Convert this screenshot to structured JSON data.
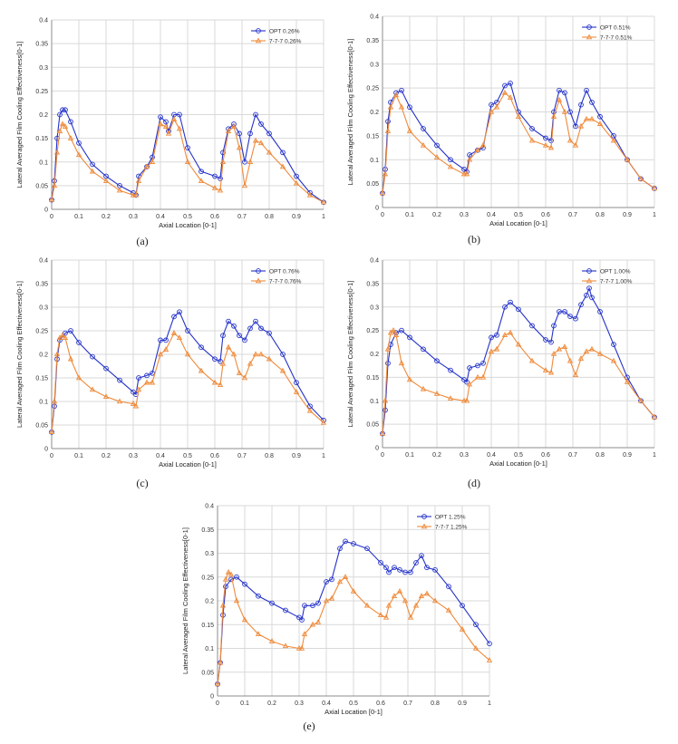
{
  "chart_data": [
    {
      "type": "line",
      "caption": "(a)",
      "xlabel": "Axial Location [0-1]",
      "ylabel": "Lateral Averaged Film Cooling Effectiveness[0-1]",
      "xlim": [
        0,
        1
      ],
      "ylim": [
        0,
        0.4
      ],
      "xticks": [
        "0",
        "0.1",
        "0.2",
        "0.3",
        "0.4",
        "0.5",
        "0.6",
        "0.7",
        "0.8",
        "0.9",
        "1"
      ],
      "yticks": [
        "0",
        "0.05",
        "0.1",
        "0.15",
        "0.2",
        "0.25",
        "0.3",
        "0.35",
        "0.4"
      ],
      "grid": true,
      "legend": "top-right",
      "series": [
        {
          "name": "OPT 0.26%",
          "color": "#2432c8",
          "marker": "circle",
          "x": [
            0,
            0.01,
            0.02,
            0.03,
            0.04,
            0.05,
            0.07,
            0.1,
            0.15,
            0.2,
            0.25,
            0.3,
            0.31,
            0.32,
            0.35,
            0.37,
            0.4,
            0.42,
            0.43,
            0.45,
            0.47,
            0.5,
            0.55,
            0.6,
            0.62,
            0.63,
            0.65,
            0.67,
            0.69,
            0.71,
            0.73,
            0.75,
            0.77,
            0.8,
            0.85,
            0.9,
            0.95,
            1.0
          ],
          "y": [
            0.02,
            0.06,
            0.15,
            0.2,
            0.21,
            0.21,
            0.185,
            0.14,
            0.095,
            0.07,
            0.05,
            0.035,
            0.03,
            0.07,
            0.09,
            0.11,
            0.195,
            0.185,
            0.165,
            0.2,
            0.2,
            0.13,
            0.08,
            0.07,
            0.065,
            0.12,
            0.17,
            0.18,
            0.16,
            0.1,
            0.16,
            0.2,
            0.18,
            0.16,
            0.12,
            0.07,
            0.035,
            0.015
          ]
        },
        {
          "name": "7-7-7 0.26%",
          "color": "#ef8a3a",
          "marker": "triangle",
          "x": [
            0,
            0.01,
            0.02,
            0.03,
            0.04,
            0.05,
            0.07,
            0.1,
            0.15,
            0.2,
            0.25,
            0.3,
            0.31,
            0.32,
            0.35,
            0.37,
            0.4,
            0.42,
            0.43,
            0.45,
            0.47,
            0.5,
            0.55,
            0.6,
            0.62,
            0.63,
            0.65,
            0.67,
            0.69,
            0.71,
            0.73,
            0.75,
            0.77,
            0.8,
            0.85,
            0.9,
            0.95,
            1.0
          ],
          "y": [
            0.02,
            0.05,
            0.12,
            0.165,
            0.18,
            0.175,
            0.15,
            0.115,
            0.08,
            0.06,
            0.04,
            0.03,
            0.03,
            0.06,
            0.09,
            0.1,
            0.18,
            0.175,
            0.16,
            0.19,
            0.17,
            0.1,
            0.06,
            0.045,
            0.04,
            0.1,
            0.165,
            0.175,
            0.13,
            0.05,
            0.1,
            0.145,
            0.14,
            0.12,
            0.09,
            0.055,
            0.03,
            0.015
          ]
        }
      ]
    },
    {
      "type": "line",
      "caption": "(b)",
      "xlabel": "Axial Location [0-1]",
      "ylabel": "Lateral Averaged Film Cooling Effectiveness[0-1]",
      "xlim": [
        0,
        1
      ],
      "ylim": [
        0,
        0.4
      ],
      "xticks": [
        "0",
        "0.1",
        "0.2",
        "0.3",
        "0.4",
        "0.5",
        "0.6",
        "0.7",
        "0.8",
        "0.9",
        "1"
      ],
      "yticks": [
        "0",
        "0.05",
        "0.1",
        "0.15",
        "0.2",
        "0.25",
        "0.3",
        "0.35",
        "0.4"
      ],
      "grid": true,
      "legend": "top-right",
      "series": [
        {
          "name": "OPT 0.51%",
          "color": "#2432c8",
          "marker": "circle",
          "x": [
            0,
            0.01,
            0.02,
            0.03,
            0.05,
            0.07,
            0.1,
            0.15,
            0.2,
            0.25,
            0.3,
            0.31,
            0.32,
            0.35,
            0.37,
            0.4,
            0.42,
            0.45,
            0.47,
            0.5,
            0.55,
            0.6,
            0.62,
            0.63,
            0.65,
            0.67,
            0.69,
            0.71,
            0.73,
            0.75,
            0.77,
            0.8,
            0.85,
            0.9,
            0.95,
            1.0
          ],
          "y": [
            0.03,
            0.08,
            0.18,
            0.22,
            0.24,
            0.245,
            0.21,
            0.165,
            0.13,
            0.1,
            0.08,
            0.075,
            0.11,
            0.12,
            0.125,
            0.215,
            0.22,
            0.255,
            0.26,
            0.2,
            0.165,
            0.145,
            0.14,
            0.2,
            0.245,
            0.24,
            0.2,
            0.17,
            0.215,
            0.245,
            0.22,
            0.19,
            0.15,
            0.1,
            0.06,
            0.04
          ]
        },
        {
          "name": "7-7-7 0.51%",
          "color": "#ef8a3a",
          "marker": "triangle",
          "x": [
            0,
            0.01,
            0.02,
            0.03,
            0.05,
            0.07,
            0.1,
            0.15,
            0.2,
            0.25,
            0.3,
            0.31,
            0.32,
            0.35,
            0.37,
            0.4,
            0.42,
            0.45,
            0.47,
            0.5,
            0.55,
            0.6,
            0.62,
            0.63,
            0.65,
            0.67,
            0.69,
            0.71,
            0.73,
            0.75,
            0.77,
            0.8,
            0.85,
            0.9,
            0.95,
            1.0
          ],
          "y": [
            0.03,
            0.07,
            0.16,
            0.21,
            0.235,
            0.21,
            0.16,
            0.13,
            0.105,
            0.085,
            0.07,
            0.07,
            0.1,
            0.12,
            0.13,
            0.2,
            0.21,
            0.24,
            0.23,
            0.19,
            0.14,
            0.13,
            0.125,
            0.19,
            0.225,
            0.2,
            0.14,
            0.13,
            0.17,
            0.185,
            0.185,
            0.175,
            0.14,
            0.1,
            0.06,
            0.04
          ]
        }
      ]
    },
    {
      "type": "line",
      "caption": "(c)",
      "xlabel": "Axial Location [0-1]",
      "ylabel": "Lateral Averaged Film Cooling Effectiveness[0-1]",
      "xlim": [
        0,
        1
      ],
      "ylim": [
        0,
        0.4
      ],
      "xticks": [
        "0",
        "0.1",
        "0.2",
        "0.3",
        "0.4",
        "0.5",
        "0.6",
        "0.7",
        "0.8",
        "0.9",
        "1"
      ],
      "yticks": [
        "0",
        "0.05",
        "0.1",
        "0.15",
        "0.2",
        "0.25",
        "0.3",
        "0.35",
        "0.4"
      ],
      "grid": true,
      "legend": "top-right",
      "series": [
        {
          "name": "OPT 0.76%",
          "color": "#2432c8",
          "marker": "circle",
          "x": [
            0,
            0.01,
            0.02,
            0.03,
            0.05,
            0.07,
            0.1,
            0.15,
            0.2,
            0.25,
            0.3,
            0.31,
            0.32,
            0.35,
            0.37,
            0.4,
            0.42,
            0.45,
            0.47,
            0.5,
            0.55,
            0.6,
            0.62,
            0.63,
            0.65,
            0.67,
            0.69,
            0.71,
            0.73,
            0.75,
            0.77,
            0.8,
            0.85,
            0.9,
            0.95,
            1.0
          ],
          "y": [
            0.035,
            0.09,
            0.19,
            0.23,
            0.245,
            0.25,
            0.225,
            0.195,
            0.17,
            0.145,
            0.12,
            0.115,
            0.15,
            0.155,
            0.16,
            0.23,
            0.23,
            0.28,
            0.29,
            0.25,
            0.215,
            0.19,
            0.185,
            0.24,
            0.27,
            0.26,
            0.24,
            0.23,
            0.255,
            0.27,
            0.255,
            0.245,
            0.2,
            0.14,
            0.09,
            0.06
          ]
        },
        {
          "name": "7-7-7 0.76%",
          "color": "#ef8a3a",
          "marker": "triangle",
          "x": [
            0,
            0.01,
            0.02,
            0.03,
            0.04,
            0.05,
            0.07,
            0.1,
            0.15,
            0.2,
            0.25,
            0.3,
            0.31,
            0.32,
            0.35,
            0.37,
            0.4,
            0.42,
            0.45,
            0.47,
            0.5,
            0.55,
            0.6,
            0.62,
            0.63,
            0.65,
            0.67,
            0.69,
            0.71,
            0.73,
            0.75,
            0.77,
            0.8,
            0.85,
            0.9,
            0.95,
            1.0
          ],
          "y": [
            0.035,
            0.1,
            0.2,
            0.235,
            0.24,
            0.235,
            0.19,
            0.15,
            0.125,
            0.11,
            0.1,
            0.095,
            0.09,
            0.125,
            0.14,
            0.14,
            0.2,
            0.21,
            0.245,
            0.235,
            0.2,
            0.165,
            0.14,
            0.135,
            0.18,
            0.215,
            0.2,
            0.16,
            0.15,
            0.18,
            0.2,
            0.2,
            0.19,
            0.165,
            0.12,
            0.08,
            0.055
          ]
        }
      ]
    },
    {
      "type": "line",
      "caption": "(d)",
      "xlabel": "Axial Location [0-1]",
      "ylabel": "Lateral Averaged Film Cooling Effectiveness[0-1]",
      "xlim": [
        0,
        1
      ],
      "ylim": [
        0,
        0.4
      ],
      "xticks": [
        "0",
        "0.1",
        "0.2",
        "0.3",
        "0.4",
        "0.5",
        "0.6",
        "0.7",
        "0.8",
        "0.9",
        "1"
      ],
      "yticks": [
        "0",
        "0.05",
        "0.1",
        "0.15",
        "0.2",
        "0.25",
        "0.3",
        "0.35",
        "0.4"
      ],
      "grid": true,
      "legend": "top-right",
      "series": [
        {
          "name": "OPT 1.00%",
          "color": "#2432c8",
          "marker": "circle",
          "x": [
            0,
            0.01,
            0.02,
            0.03,
            0.05,
            0.07,
            0.1,
            0.15,
            0.2,
            0.25,
            0.3,
            0.31,
            0.32,
            0.35,
            0.37,
            0.4,
            0.42,
            0.45,
            0.47,
            0.5,
            0.55,
            0.6,
            0.62,
            0.63,
            0.65,
            0.67,
            0.69,
            0.71,
            0.73,
            0.75,
            0.76,
            0.77,
            0.8,
            0.85,
            0.9,
            0.95,
            1.0
          ],
          "y": [
            0.03,
            0.08,
            0.18,
            0.22,
            0.245,
            0.25,
            0.235,
            0.21,
            0.185,
            0.165,
            0.145,
            0.14,
            0.17,
            0.175,
            0.18,
            0.235,
            0.24,
            0.3,
            0.31,
            0.295,
            0.26,
            0.23,
            0.225,
            0.26,
            0.29,
            0.29,
            0.28,
            0.275,
            0.305,
            0.325,
            0.34,
            0.32,
            0.29,
            0.22,
            0.15,
            0.1,
            0.065
          ]
        },
        {
          "name": "7-7-7 1.00%",
          "color": "#ef8a3a",
          "marker": "triangle",
          "x": [
            0,
            0.01,
            0.02,
            0.03,
            0.04,
            0.05,
            0.07,
            0.1,
            0.15,
            0.2,
            0.25,
            0.3,
            0.31,
            0.32,
            0.35,
            0.37,
            0.4,
            0.42,
            0.45,
            0.47,
            0.5,
            0.55,
            0.6,
            0.62,
            0.63,
            0.65,
            0.67,
            0.69,
            0.71,
            0.73,
            0.75,
            0.77,
            0.8,
            0.85,
            0.9,
            0.95,
            1.0
          ],
          "y": [
            0.03,
            0.1,
            0.21,
            0.245,
            0.25,
            0.24,
            0.18,
            0.145,
            0.125,
            0.115,
            0.105,
            0.1,
            0.1,
            0.135,
            0.15,
            0.15,
            0.205,
            0.21,
            0.24,
            0.245,
            0.22,
            0.185,
            0.165,
            0.16,
            0.2,
            0.21,
            0.215,
            0.185,
            0.155,
            0.19,
            0.205,
            0.21,
            0.2,
            0.185,
            0.14,
            0.1,
            0.065
          ]
        }
      ]
    },
    {
      "type": "line",
      "caption": "(e)",
      "xlabel": "Axial Location [0-1]",
      "ylabel": "Lateral Averaged Film Cooling Effectiveness[0-1]",
      "xlim": [
        0,
        1
      ],
      "ylim": [
        0,
        0.4
      ],
      "xticks": [
        "0",
        "0.1",
        "0.2",
        "0.3",
        "0.4",
        "0.5",
        "0.6",
        "0.7",
        "0.8",
        "0.9",
        "1"
      ],
      "yticks": [
        "0",
        "0.05",
        "0.1",
        "0.15",
        "0.2",
        "0.25",
        "0.3",
        "0.35",
        "0.4"
      ],
      "grid": true,
      "legend": "top-right",
      "series": [
        {
          "name": "OPT 1.25%",
          "color": "#2432c8",
          "marker": "circle",
          "x": [
            0,
            0.01,
            0.02,
            0.03,
            0.05,
            0.07,
            0.1,
            0.15,
            0.2,
            0.25,
            0.3,
            0.31,
            0.32,
            0.35,
            0.37,
            0.4,
            0.42,
            0.45,
            0.47,
            0.5,
            0.55,
            0.6,
            0.62,
            0.63,
            0.65,
            0.67,
            0.69,
            0.71,
            0.73,
            0.75,
            0.77,
            0.8,
            0.85,
            0.9,
            0.95,
            1.0
          ],
          "y": [
            0.025,
            0.07,
            0.17,
            0.23,
            0.245,
            0.25,
            0.235,
            0.21,
            0.195,
            0.18,
            0.165,
            0.16,
            0.19,
            0.19,
            0.195,
            0.24,
            0.245,
            0.31,
            0.325,
            0.32,
            0.31,
            0.28,
            0.27,
            0.26,
            0.27,
            0.265,
            0.26,
            0.26,
            0.28,
            0.295,
            0.27,
            0.265,
            0.23,
            0.19,
            0.15,
            0.11
          ]
        },
        {
          "name": "7-7-7 1.25%",
          "color": "#ef8a3a",
          "marker": "triangle",
          "x": [
            0,
            0.01,
            0.02,
            0.03,
            0.04,
            0.05,
            0.07,
            0.1,
            0.15,
            0.2,
            0.25,
            0.3,
            0.31,
            0.32,
            0.35,
            0.37,
            0.4,
            0.42,
            0.45,
            0.47,
            0.5,
            0.55,
            0.6,
            0.62,
            0.63,
            0.65,
            0.67,
            0.69,
            0.71,
            0.73,
            0.75,
            0.77,
            0.8,
            0.85,
            0.9,
            0.95,
            1.0
          ],
          "y": [
            0.025,
            0.07,
            0.19,
            0.245,
            0.26,
            0.255,
            0.2,
            0.16,
            0.13,
            0.115,
            0.105,
            0.1,
            0.1,
            0.13,
            0.15,
            0.155,
            0.2,
            0.205,
            0.24,
            0.25,
            0.22,
            0.19,
            0.17,
            0.165,
            0.19,
            0.21,
            0.22,
            0.2,
            0.165,
            0.19,
            0.21,
            0.215,
            0.2,
            0.18,
            0.14,
            0.1,
            0.075
          ]
        }
      ]
    }
  ]
}
